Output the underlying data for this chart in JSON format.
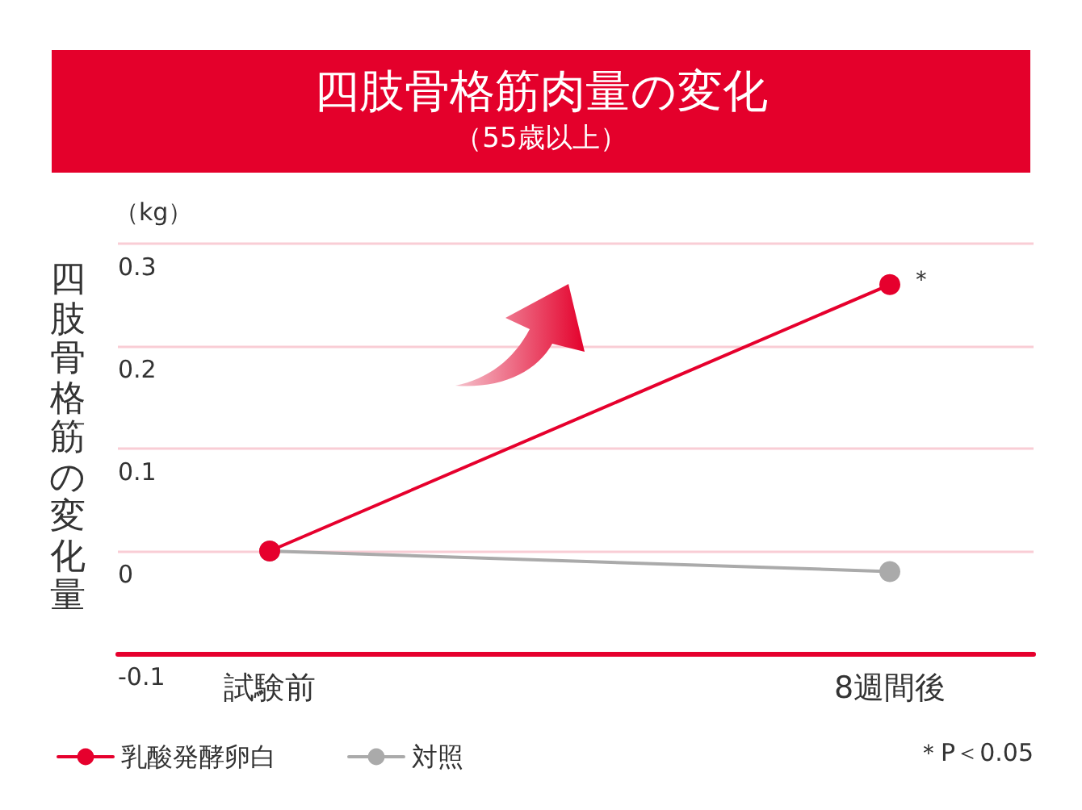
{
  "chart_data": {
    "type": "line",
    "title": "四肢骨格筋肉量の変化",
    "subtitle": "（55歳以上）",
    "ylabel": "四肢骨格筋の変化量",
    "categories": [
      "試験前",
      "8週間後"
    ],
    "series": [
      {
        "name": "乳酸発酵卵白",
        "color": "#e6002d",
        "values": [
          0,
          0.26
        ]
      },
      {
        "name": "対照",
        "color": "#aaaaaa",
        "values": [
          0,
          -0.02
        ]
      }
    ],
    "ylim": [
      -0.1,
      0.3
    ],
    "yticks": [
      -0.1,
      0,
      0.1,
      0.2,
      0.3
    ],
    "annotations": [
      "（kg）",
      {
        "text": "＊",
        "x": "8週間後",
        "y": 0.26
      },
      "＊P＜0.05"
    ],
    "grid": "y",
    "legend": "bottom left",
    "marker": "circle",
    "line_style": "solid"
  }
}
